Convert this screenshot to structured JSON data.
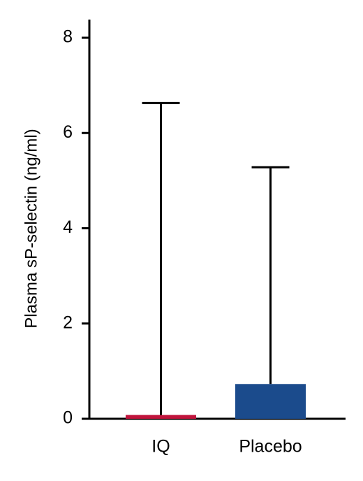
{
  "chart_data": {
    "type": "bar",
    "y_label": "Plasma sP-selectin (ng/ml)",
    "categories": [
      "IQ",
      "Placebo"
    ],
    "values": [
      0.08,
      0.73
    ],
    "errors": [
      6.55,
      4.55
    ],
    "colors": [
      "#c0143c",
      "#1b4b8c"
    ],
    "ylim": [
      0,
      8
    ],
    "yticks": [
      0,
      2,
      4,
      6,
      8
    ]
  }
}
